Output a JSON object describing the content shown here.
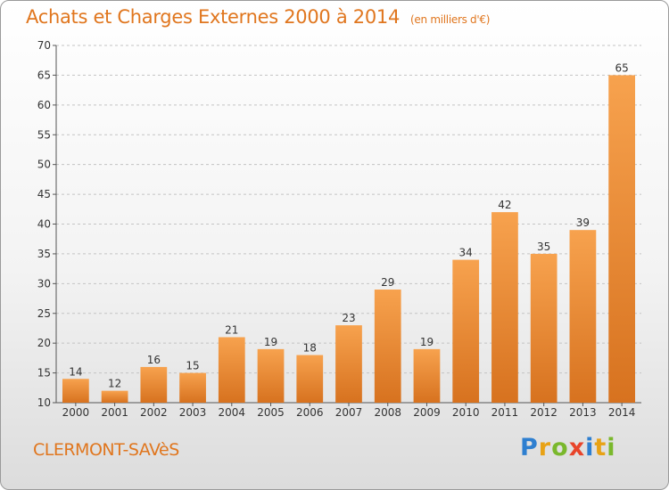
{
  "header": {
    "title": "Achats et Charges Externes 2000 à 2014",
    "subtitle": "(en milliers d'€)"
  },
  "footer": {
    "place": "CLERMONT-SAVèS",
    "logo": "Proxiti"
  },
  "colors": {
    "accent": "#e0761e",
    "bar_top": "#f7a24e",
    "bar_bottom": "#d7721f",
    "logo_letters": [
      "#2e7fd0",
      "#e8a215",
      "#7ab82c",
      "#e8442a",
      "#2e7fd0",
      "#e8a215",
      "#7ab82c"
    ]
  },
  "chart_data": {
    "type": "bar",
    "title": "Achats et Charges Externes 2000 à 2014",
    "subtitle": "(en milliers d'€)",
    "xlabel": "",
    "ylabel": "",
    "ylim": [
      10,
      70
    ],
    "yticks": [
      10,
      15,
      20,
      25,
      30,
      35,
      40,
      45,
      50,
      55,
      60,
      65,
      70
    ],
    "grid": true,
    "legend": "none",
    "categories": [
      "2000",
      "2001",
      "2002",
      "2003",
      "2004",
      "2005",
      "2006",
      "2007",
      "2008",
      "2009",
      "2010",
      "2011",
      "2012",
      "2013",
      "2014"
    ],
    "values": [
      14,
      12,
      16,
      15,
      21,
      19,
      18,
      23,
      29,
      19,
      34,
      42,
      35,
      39,
      65
    ]
  }
}
